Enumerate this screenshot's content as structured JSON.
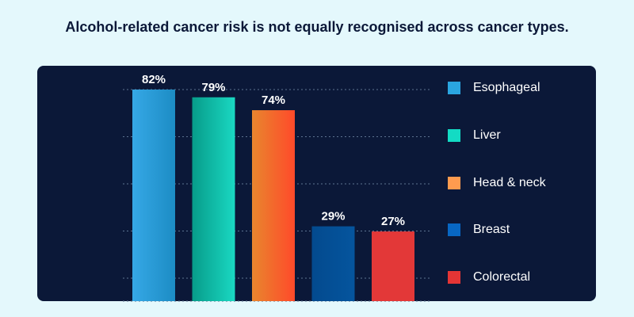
{
  "chart_data": {
    "type": "bar",
    "title": "Alcohol-related cancer risk is not equally recognised across cancer types.",
    "categories": [
      "Esophageal",
      "Liver",
      "Head & neck",
      "Breast",
      "Colorectal"
    ],
    "values": [
      82,
      79,
      74,
      29,
      27
    ],
    "data_labels": [
      "82%",
      "79%",
      "74%",
      "29%",
      "27%"
    ],
    "ylim": [
      0,
      82
    ],
    "grid": true,
    "legend": "right",
    "colors": [
      "#2aa5e0",
      "#13dbc4",
      "#fe9b4f",
      "#0867c3",
      "#e53535"
    ],
    "gradients": [
      [
        "#36a8e6",
        "#1c8cc4"
      ],
      [
        "#079c8a",
        "#1ad8c2"
      ],
      [
        "#e8862e",
        "#ff4a2a"
      ],
      [
        "#034a8e",
        "#05559e"
      ],
      [
        "#e33838",
        "#e33838"
      ]
    ],
    "background": "#0b1838",
    "page_background": "#e4f8fc"
  }
}
